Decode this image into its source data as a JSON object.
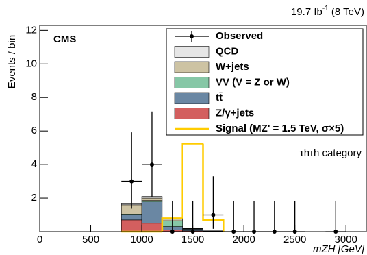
{
  "chart_data": {
    "type": "histogram",
    "lumi": "19.7 fb",
    "lumi_exponent": "-1",
    "energy": "(8 TeV)",
    "experiment": "CMS",
    "annotation": "τhτh category",
    "x_label": "mZH [GeV]",
    "y_label": "Events / bin",
    "xlim": [
      0,
      3200
    ],
    "xticks": [
      0,
      500,
      1000,
      1500,
      2000,
      2500,
      3000
    ],
    "ylim": [
      0,
      12.3
    ],
    "yticks": [
      2,
      4,
      6,
      8,
      10,
      12
    ],
    "bins": [
      800,
      1000,
      1200,
      1400,
      1600,
      1800
    ],
    "series": [
      {
        "name": "QCD",
        "color": "#e6e6e6",
        "values": [
          0.1,
          0.1,
          0.05,
          0.0,
          0.0
        ]
      },
      {
        "name": "W+jets",
        "color": "#cdc3a3",
        "values": [
          0.55,
          0.15,
          0.1,
          0.02,
          0.0
        ]
      },
      {
        "name": "VV (V = Z or W)",
        "color": "#86c7a6",
        "values": [
          0.05,
          0.05,
          0.35,
          0.03,
          0.02
        ]
      },
      {
        "name": "tt̄",
        "color": "#6a87a3",
        "values": [
          0.3,
          1.3,
          0.2,
          0.1,
          0.02
        ]
      },
      {
        "name": "Z/γ+jets",
        "color": "#d35f5f",
        "values": [
          0.7,
          0.5,
          0.1,
          0.05,
          0.01
        ]
      }
    ],
    "signal": {
      "name": "Signal (MZ' = 1.5 TeV, σ×5)",
      "color": "#ffcc00",
      "values": [
        0.0,
        0.0,
        0.8,
        5.25,
        0.7
      ]
    },
    "observed": {
      "name": "Observed",
      "x": [
        900,
        1100,
        1300,
        1500,
        1700,
        1900,
        2100,
        2300,
        2500,
        2900
      ],
      "values": [
        3,
        4,
        0,
        0,
        1,
        0,
        0,
        0,
        0,
        0
      ],
      "err_low": [
        1.63,
        1.91,
        0,
        0,
        0.83,
        0,
        0,
        0,
        0,
        0
      ],
      "err_high": [
        2.92,
        3.16,
        1.84,
        1.84,
        2.3,
        1.84,
        1.84,
        1.84,
        1.84,
        1.84
      ],
      "xerr": 100
    }
  }
}
